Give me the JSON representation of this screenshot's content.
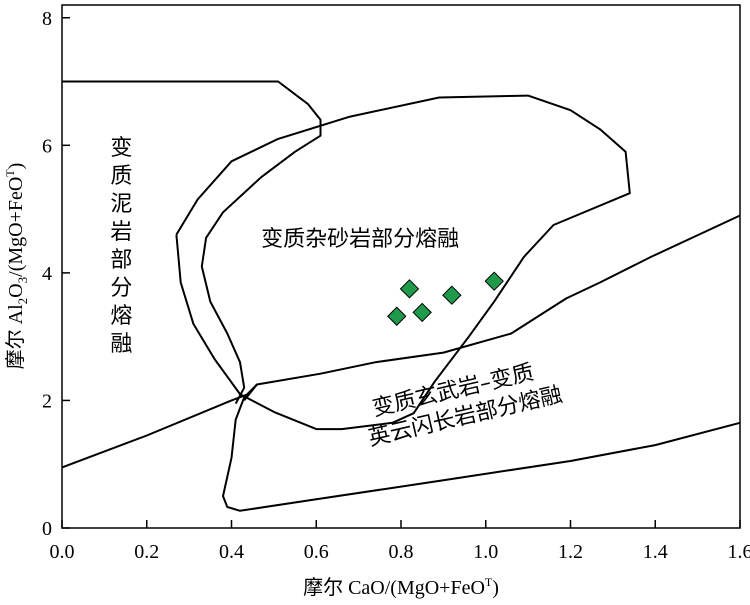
{
  "chart_data": {
    "type": "scatter",
    "title": "",
    "xlabel_prefix": "摩尔 CaO/(MgO+FeO",
    "xlabel_sup": "T",
    "xlabel_suffix": ")",
    "ylabel_prefix": "摩尔 Al",
    "ylabel_sub1": "2",
    "ylabel_mid": "O",
    "ylabel_sub2": "3",
    "ylabel_rest": "/(MgO+FeO",
    "ylabel_sup": "T",
    "ylabel_suffix": ")",
    "xlim": [
      0.0,
      1.6
    ],
    "ylim": [
      0,
      8.2
    ],
    "x_ticks": [
      "0.0",
      "0.2",
      "0.4",
      "0.6",
      "0.8",
      "1.0",
      "1.2",
      "1.4",
      "1.6"
    ],
    "x_tick_values": [
      0.0,
      0.2,
      0.4,
      0.6,
      0.8,
      1.0,
      1.2,
      1.4,
      1.6
    ],
    "y_ticks": [
      "0",
      "2",
      "4",
      "6",
      "8"
    ],
    "y_tick_values": [
      0,
      2,
      4,
      6,
      8
    ],
    "grid": false,
    "marker_color": "#1f9a4a",
    "points": [
      {
        "x": 0.79,
        "y": 3.32
      },
      {
        "x": 0.82,
        "y": 3.75
      },
      {
        "x": 0.85,
        "y": 3.38
      },
      {
        "x": 0.92,
        "y": 3.65
      },
      {
        "x": 1.02,
        "y": 3.87
      }
    ],
    "fields": [
      {
        "label_lines": [
          "变",
          "质",
          "泥",
          "岩",
          "部",
          "分",
          "熔",
          "融"
        ],
        "label_layout": "vertical",
        "label_anchor": [
          0.14,
          5.85
        ],
        "boundary": [
          [
            0.0,
            7.0
          ],
          [
            0.51,
            7.0
          ],
          [
            0.58,
            6.65
          ],
          [
            0.61,
            6.4
          ],
          [
            0.61,
            6.15
          ],
          [
            0.55,
            5.9
          ],
          [
            0.47,
            5.5
          ],
          [
            0.38,
            4.95
          ],
          [
            0.34,
            4.55
          ],
          [
            0.33,
            4.1
          ],
          [
            0.35,
            3.55
          ],
          [
            0.39,
            3.05
          ],
          [
            0.42,
            2.6
          ],
          [
            0.43,
            2.2
          ],
          [
            0.41,
            1.95
          ]
        ]
      },
      {
        "label_lines": [
          "变质杂砂岩部分熔融"
        ],
        "label_layout": "horizontal",
        "label_anchor": [
          0.47,
          4.42
        ],
        "boundary": [
          [
            0.27,
            4.6
          ],
          [
            0.32,
            5.15
          ],
          [
            0.4,
            5.75
          ],
          [
            0.51,
            6.1
          ],
          [
            0.68,
            6.45
          ],
          [
            0.89,
            6.75
          ],
          [
            1.1,
            6.78
          ],
          [
            1.2,
            6.55
          ],
          [
            1.27,
            6.25
          ],
          [
            1.33,
            5.9
          ],
          [
            1.34,
            5.25
          ],
          [
            1.16,
            4.75
          ],
          [
            1.09,
            4.25
          ],
          [
            1.02,
            3.55
          ],
          [
            0.96,
            3.0
          ],
          [
            0.88,
            2.3
          ],
          [
            0.83,
            1.8
          ],
          [
            0.78,
            1.65
          ],
          [
            0.66,
            1.55
          ],
          [
            0.6,
            1.55
          ],
          [
            0.5,
            1.82
          ],
          [
            0.42,
            2.1
          ],
          [
            0.36,
            2.65
          ],
          [
            0.31,
            3.2
          ],
          [
            0.28,
            3.85
          ],
          [
            0.27,
            4.6
          ]
        ]
      },
      {
        "label_lines": [
          "变质玄武岩–变质",
          "英云闪长岩部分熔融"
        ],
        "label_layout": "horizontal-rotated",
        "label_anchor": [
          0.96,
          1.65
        ],
        "boundary": [
          [
            0.43,
            2.0
          ],
          [
            0.46,
            2.25
          ],
          [
            0.61,
            2.42
          ],
          [
            0.74,
            2.6
          ],
          [
            0.9,
            2.75
          ],
          [
            1.06,
            3.05
          ],
          [
            1.19,
            3.6
          ],
          [
            1.27,
            3.85
          ],
          [
            1.39,
            4.25
          ],
          [
            1.6,
            4.9
          ]
        ]
      },
      {
        "label_lines": [],
        "label_layout": "none",
        "label_anchor": [
          0,
          0
        ],
        "boundary": [
          [
            0.46,
            2.25
          ],
          [
            0.43,
            2.05
          ],
          [
            0.41,
            1.7
          ],
          [
            0.4,
            1.1
          ],
          [
            0.38,
            0.5
          ],
          [
            0.39,
            0.33
          ],
          [
            0.42,
            0.27
          ],
          [
            0.6,
            0.45
          ],
          [
            0.9,
            0.75
          ],
          [
            1.2,
            1.05
          ],
          [
            1.4,
            1.3
          ],
          [
            1.6,
            1.65
          ]
        ]
      },
      {
        "label_lines": [],
        "label_layout": "none",
        "label_anchor": [
          0,
          0
        ],
        "boundary": [
          [
            0.0,
            0.95
          ],
          [
            0.2,
            1.45
          ],
          [
            0.4,
            2.0
          ],
          [
            0.44,
            2.1
          ]
        ]
      }
    ]
  }
}
